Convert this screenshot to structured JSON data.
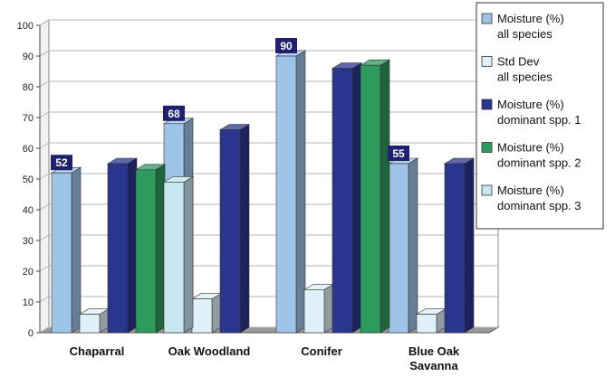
{
  "chart_data": {
    "type": "bar",
    "title": "",
    "xlabel": "",
    "ylabel": "",
    "ylim": [
      0,
      100
    ],
    "yticks": [
      0,
      10,
      20,
      30,
      40,
      50,
      60,
      70,
      80,
      90,
      100
    ],
    "grid": true,
    "legend_position": "top-right",
    "three_d": true,
    "categories": [
      [
        "Chaparral"
      ],
      [
        "Oak Woodland"
      ],
      [
        "Conifer"
      ],
      [
        "Blue Oak",
        "Savanna"
      ]
    ],
    "series": [
      {
        "name": [
          "Moisture (%)",
          "all species"
        ],
        "color": "#9dc3e6",
        "values": [
          52,
          68,
          90,
          55
        ],
        "data_labels": [
          "52",
          "68",
          "90",
          "55"
        ]
      },
      {
        "name": [
          "Std Dev",
          "all species"
        ],
        "color": "#dff0f8",
        "values": [
          6,
          11,
          14,
          6
        ]
      },
      {
        "name": [
          "Moisture (%)",
          "dominant spp. 1"
        ],
        "color": "#2a3590",
        "values": [
          55,
          66,
          86,
          55
        ]
      },
      {
        "name": [
          "Moisture (%)",
          "dominant spp. 2"
        ],
        "color": "#2e9a5e",
        "values": [
          53,
          null,
          87,
          null
        ]
      },
      {
        "name": [
          "Moisture (%)",
          "dominant spp. 3"
        ],
        "color": "#c6e6f0",
        "values": [
          49,
          null,
          null,
          null
        ]
      }
    ]
  }
}
